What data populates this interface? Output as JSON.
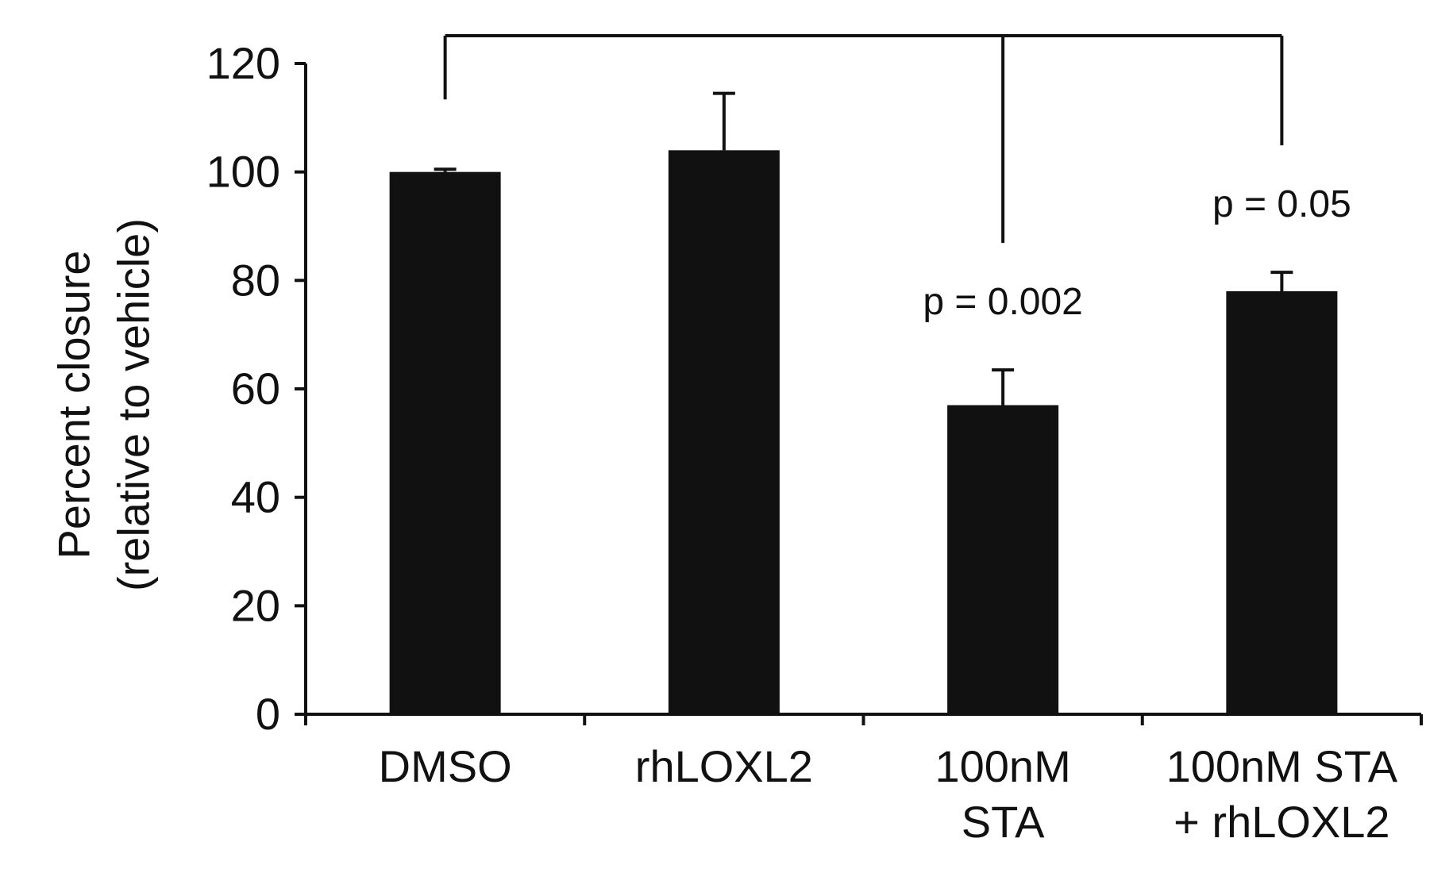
{
  "chart_data": {
    "type": "bar",
    "title": "",
    "xlabel": "",
    "ylabel_lines": [
      "Percent closure",
      "(relative to vehicle)"
    ],
    "ylim": [
      0,
      120
    ],
    "yticks": [
      "0",
      "20",
      "40",
      "60",
      "80",
      "100",
      "120"
    ],
    "categories": [
      {
        "lines": [
          "DMSO"
        ]
      },
      {
        "lines": [
          "rhLOXL2"
        ]
      },
      {
        "lines": [
          "100nM",
          "STA"
        ]
      },
      {
        "lines": [
          "100nM STA",
          "+ rhLOXL2"
        ]
      }
    ],
    "values": [
      100,
      104,
      57,
      78
    ],
    "errors": [
      0.5,
      10.5,
      6.5,
      3.5
    ],
    "bar_color": "#111111",
    "grid": false,
    "legend": "none",
    "comparisons": [
      {
        "from_category": 0,
        "to_category": 2,
        "label": "p = 0.002"
      },
      {
        "from_category": 0,
        "to_category": 3,
        "label": "p = 0.05"
      }
    ]
  }
}
